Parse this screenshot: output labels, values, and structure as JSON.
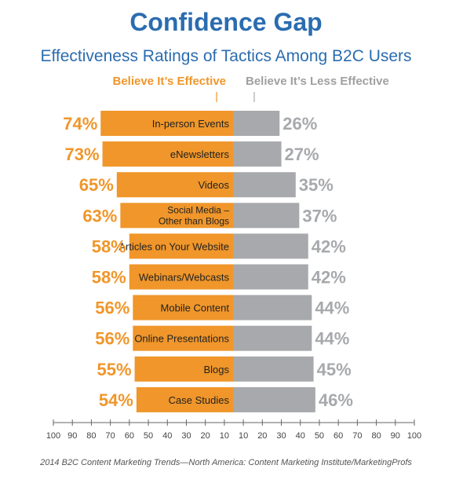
{
  "title": "Confidence Gap",
  "subtitle": "Effectiveness Ratings of Tactics Among B2C Users",
  "legend": {
    "left": "Believe It’s Effective",
    "right": "Believe It’s Less Effective"
  },
  "source": "2014 B2C Content Marketing Trends—North America: Content Marketing Institute/MarketingProfs",
  "colors": {
    "effective": "#f0962a",
    "less_effective": "#a7a9ac",
    "title": "#2b6cb0"
  },
  "chart_data": {
    "type": "bar",
    "orientation": "horizontal-diverging",
    "categories": [
      "In-person Events",
      "eNewsletters",
      "Videos",
      "Social Media – Other than Blogs",
      "Articles on Your Website",
      "Webinars/Webcasts",
      "Mobile Content",
      "Online Presentations",
      "Blogs",
      "Case Studies"
    ],
    "series": [
      {
        "name": "Believe It’s Effective",
        "values": [
          74,
          73,
          65,
          63,
          58,
          58,
          56,
          56,
          55,
          54
        ],
        "labels": [
          "74%",
          "73%",
          "65%",
          "63%",
          "58%",
          "58%",
          "56%",
          "56%",
          "55%",
          "54%"
        ]
      },
      {
        "name": "Believe It’s Less Effective",
        "values": [
          26,
          27,
          35,
          37,
          42,
          42,
          44,
          44,
          45,
          46
        ],
        "labels": [
          "26%",
          "27%",
          "35%",
          "37%",
          "42%",
          "42%",
          "44%",
          "44%",
          "45%",
          "46%"
        ]
      }
    ],
    "axis": {
      "center_value": 10,
      "range": [
        100,
        100
      ],
      "ticks": [
        "100",
        "90",
        "80",
        "70",
        "60",
        "50",
        "40",
        "30",
        "20",
        "10",
        "10",
        "20",
        "30",
        "40",
        "50",
        "60",
        "70",
        "80",
        "90",
        "100"
      ]
    }
  }
}
